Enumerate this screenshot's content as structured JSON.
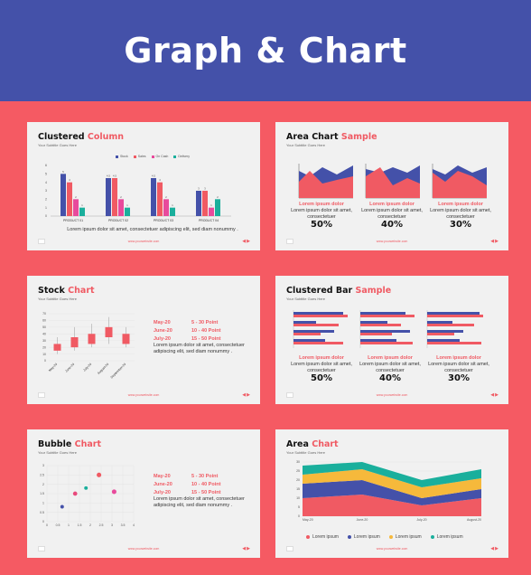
{
  "header": {
    "title": "Graph & Chart"
  },
  "colors": {
    "blue": "#4451a9",
    "red": "#f05a63",
    "pink": "#e84a9c",
    "teal": "#1aaf9c",
    "yellow": "#f6b93b",
    "bg": "#f55a63"
  },
  "slides": {
    "clustered_column": {
      "title_main": "Clustered",
      "title_accent": "Column",
      "subtitle": "Your Subtitle Goes Here",
      "legend": [
        "Stock",
        "Sales",
        "On Cash",
        "Delivery"
      ],
      "caption": "Lorem ipsum dolor sit amet, consectetuer adipiscing elit, sed diam nonummy .",
      "footer_url": "www.yourwebsite.com",
      "chart_data": {
        "type": "bar",
        "categories": [
          "PRODUCT 01",
          "PRODUCT 02",
          "PRODUCT 03",
          "PRODUCT 04"
        ],
        "series": [
          {
            "name": "Stock",
            "values": [
              5,
              4.5,
              4.5,
              3
            ]
          },
          {
            "name": "Sales",
            "values": [
              4,
              4.5,
              4,
              3
            ]
          },
          {
            "name": "On Cash",
            "values": [
              2,
              2,
              2,
              1
            ]
          },
          {
            "name": "Delivery",
            "values": [
              1,
              1,
              1,
              2
            ]
          }
        ],
        "ylim": [
          0,
          6
        ],
        "yticks": [
          "0",
          "1",
          "2",
          "3",
          "4",
          "5",
          "6"
        ]
      }
    },
    "area_sample": {
      "title_main": "Area Chart",
      "title_accent": "Sample",
      "subtitle": "Your Subtitle Goes Here",
      "items": [
        {
          "label": "Lorem ipsum dolor",
          "text": "Lorem ipsum dolor sit amet, consectetuer",
          "pct": "50%"
        },
        {
          "label": "Lorem ipsum dolor",
          "text": "Lorem ipsum dolor sit amet, consectetuer",
          "pct": "40%"
        },
        {
          "label": "Lorem ipsum dolor",
          "text": "Lorem ipsum dolor sit amet, consectetuer",
          "pct": "30%"
        }
      ],
      "footer_url": "www.yourwebsite.com"
    },
    "stock": {
      "title_main": "Stock",
      "title_accent": "Chart",
      "subtitle": "Your Subtitle Goes Here",
      "schedule": [
        {
          "date": "May-20",
          "range": "5 - 30 Point"
        },
        {
          "date": "June-20",
          "range": "10 - 40 Point"
        },
        {
          "date": "July-20",
          "range": "15 - 50 Point"
        }
      ],
      "text": "Lorem ipsum dolor sit amet, consectetuer adipiscing elit, sed diam nonummy .",
      "footer_url": "www.yourwebsite.com",
      "chart_data": {
        "type": "bar",
        "categories": [
          "May-20",
          "June-20",
          "July-20",
          "August-20",
          "September-20"
        ],
        "low": [
          10,
          15,
          20,
          25,
          20
        ],
        "high": [
          35,
          50,
          55,
          65,
          50
        ],
        "open": [
          15,
          20,
          25,
          35,
          25
        ],
        "close": [
          25,
          35,
          40,
          50,
          40
        ],
        "ylim": [
          0,
          70
        ],
        "yticks": [
          "0",
          "10",
          "20",
          "30",
          "40",
          "50",
          "60",
          "70"
        ]
      }
    },
    "clustered_bar": {
      "title_main": "Clustered Bar",
      "title_accent": "Sample",
      "subtitle": "Your Subtitle Goes Here",
      "items": [
        {
          "label": "Lorem ipsum dolor",
          "text": "Lorem ipsum dolor sit amet, consectetuer",
          "pct": "50%"
        },
        {
          "label": "Lorem ipsum dolor",
          "text": "Lorem ipsum dolor sit amet, consectetuer",
          "pct": "40%"
        },
        {
          "label": "Lorem ipsum dolor",
          "text": "Lorem ipsum dolor sit amet, consectetuer",
          "pct": "30%"
        }
      ],
      "footer_url": "www.yourwebsite.com"
    },
    "bubble": {
      "title_main": "Bubble",
      "title_accent": "Chart",
      "subtitle": "Your Subtitle Goes Here",
      "schedule": [
        {
          "date": "May-20",
          "range": "5 - 30 Point"
        },
        {
          "date": "June-20",
          "range": "10 - 40 Point"
        },
        {
          "date": "July-20",
          "range": "15 - 50 Point"
        }
      ],
      "text": "Lorem ipsum dolor sit amet, consectetuer adipiscing elit, sed diam nonummy .",
      "footer_url": "www.yourwebsite.com",
      "chart_data": {
        "type": "scatter",
        "points": [
          {
            "x": 0.7,
            "y": 0.8,
            "r": 0.25,
            "color": "#4451a9"
          },
          {
            "x": 1.3,
            "y": 1.5,
            "r": 0.3,
            "color": "#e84a7c"
          },
          {
            "x": 1.8,
            "y": 1.8,
            "r": 0.25,
            "color": "#1aaf9c"
          },
          {
            "x": 2.4,
            "y": 2.5,
            "r": 0.32,
            "color": "#f05a63"
          },
          {
            "x": 3.1,
            "y": 1.6,
            "r": 0.32,
            "color": "#e84a9c"
          }
        ],
        "xlim": [
          0,
          4
        ],
        "ylim": [
          0,
          3
        ],
        "xticks": [
          "0",
          "0.5",
          "1",
          "1.5",
          "2",
          "2.5",
          "3",
          "3.5",
          "4"
        ],
        "yticks": [
          "0",
          "0.5",
          "1",
          "1.5",
          "2",
          "2.5",
          "3"
        ]
      }
    },
    "area": {
      "title_main": "Area",
      "title_accent": "Chart",
      "subtitle": "Your Subtitle Goes Here",
      "legend": [
        "Lorem ipsum",
        "Lorem ipsum",
        "Lorem ipsum",
        "Lorem ipsum"
      ],
      "footer_url": "www.yourwebsite.com",
      "chart_data": {
        "type": "area",
        "categories": [
          "May-20",
          "June-20",
          "July-20",
          "August-20"
        ],
        "series": [
          {
            "name": "Lorem ipsum",
            "values": [
              10,
              12,
              6,
              10
            ]
          },
          {
            "name": "Lorem ipsum",
            "values": [
              8,
              8,
              4,
              5
            ]
          },
          {
            "name": "Lorem ipsum",
            "values": [
              5,
              6,
              6,
              6
            ]
          },
          {
            "name": "Lorem ipsum",
            "values": [
              5,
              4,
              4,
              5
            ]
          }
        ],
        "ylim": [
          0,
          30
        ],
        "yticks": [
          "0",
          "5",
          "10",
          "15",
          "20",
          "25",
          "30"
        ]
      }
    }
  }
}
